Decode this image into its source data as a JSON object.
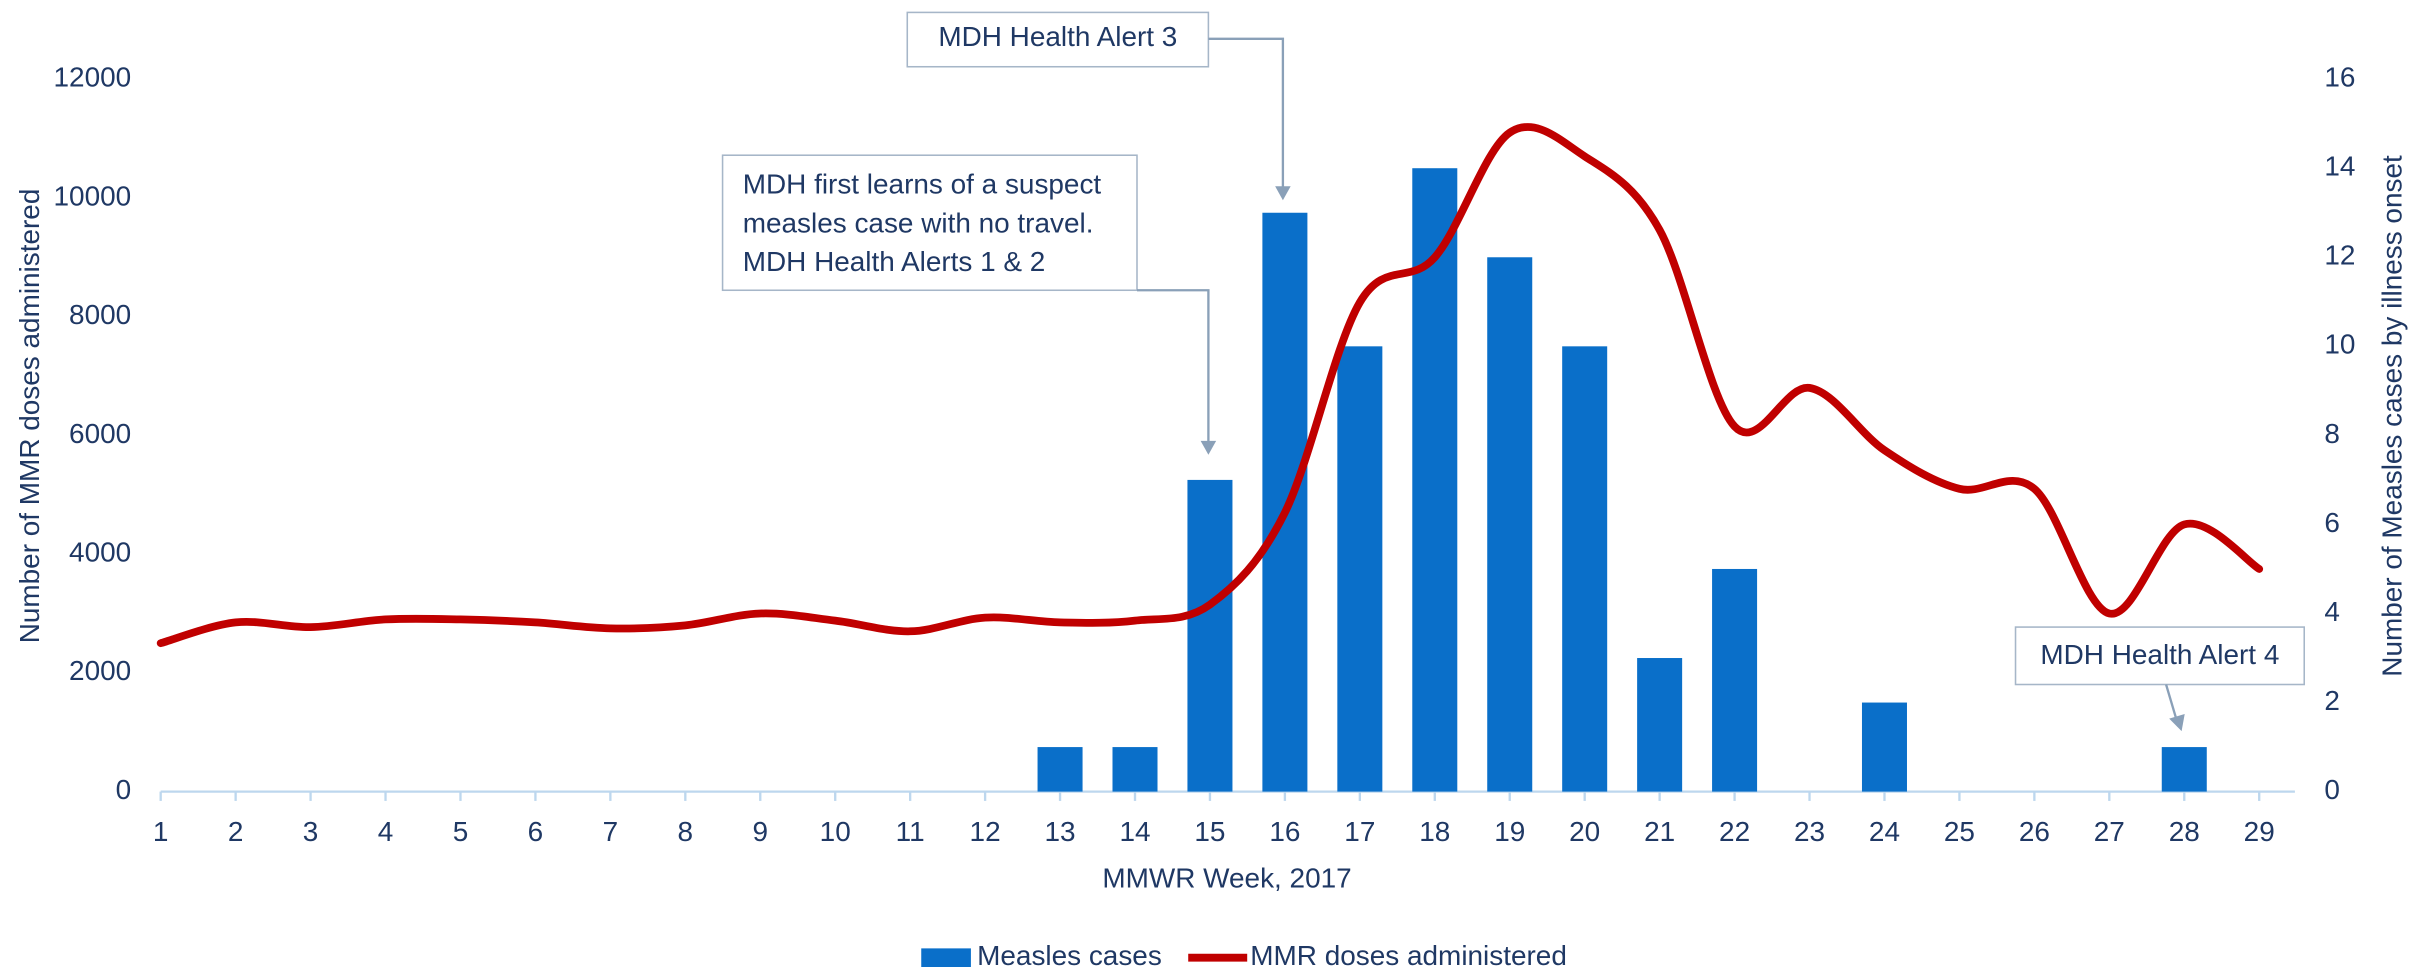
{
  "chart_data": {
    "type": "bar_line",
    "x_label": "MMWR Week, 2017",
    "y_label": "Number of MMR doses administered",
    "y2_label": "Number of Measles cases by illness onset",
    "categories": [
      1,
      2,
      3,
      4,
      5,
      6,
      7,
      8,
      9,
      10,
      11,
      12,
      13,
      14,
      15,
      16,
      17,
      18,
      19,
      20,
      21,
      22,
      23,
      24,
      25,
      26,
      27,
      28,
      29
    ],
    "ylim": [
      0,
      12000
    ],
    "yticks": [
      0,
      2000,
      4000,
      6000,
      8000,
      10000,
      12000
    ],
    "y2lim": [
      0,
      16
    ],
    "y2ticks": [
      0,
      2,
      4,
      6,
      8,
      10,
      12,
      14,
      16
    ],
    "series": [
      {
        "name": "Measles cases",
        "type": "bar",
        "axis": "y2",
        "color": "#0a6fc9",
        "values": [
          0,
          0,
          0,
          0,
          0,
          0,
          0,
          0,
          0,
          0,
          0,
          0,
          1,
          1,
          7,
          13,
          10,
          14,
          12,
          10,
          3,
          5,
          0,
          2,
          0,
          0,
          0,
          1,
          0
        ]
      },
      {
        "name": "MMR doses administered",
        "type": "line",
        "axis": "y",
        "color": "#c00000",
        "values": [
          2500,
          2850,
          2770,
          2900,
          2900,
          2850,
          2750,
          2800,
          3000,
          2880,
          2700,
          2930,
          2850,
          2880,
          3150,
          4700,
          8240,
          9000,
          11100,
          10700,
          9460,
          6150,
          6800,
          5750,
          5100,
          5100,
          3000,
          4500,
          3750
        ]
      }
    ],
    "annotations": [
      {
        "lines": [
          "MDH Health Alert 3"
        ]
      },
      {
        "lines": [
          "MDH first learns of a suspect",
          "measles case with no travel.",
          "MDH Health Alerts 1 & 2"
        ]
      },
      {
        "lines": [
          "MDH Health Alert 4"
        ]
      }
    ],
    "legend": "bottom"
  }
}
